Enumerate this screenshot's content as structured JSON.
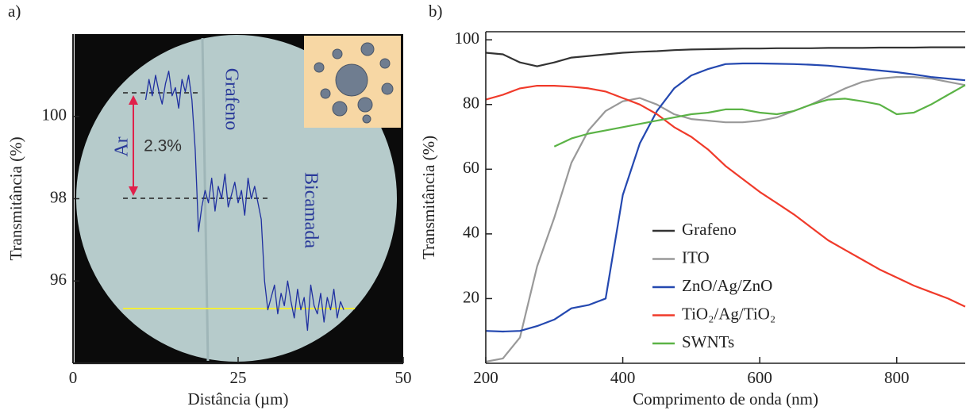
{
  "chart_data": [
    {
      "type": "line",
      "label": "a)",
      "xlabel": "Distância (µm)",
      "ylabel": "Transmitância (%)",
      "xlim": [
        0,
        50
      ],
      "xticks": [
        0,
        25,
        50
      ],
      "ylim": [
        94,
        102
      ],
      "yticks": [
        96,
        98,
        100
      ],
      "annotations": [
        "Ar",
        "2.3%",
        "Grafeno",
        "Bicamada"
      ],
      "x": [
        11,
        11.5,
        12,
        12.5,
        13,
        13.5,
        14,
        14.5,
        15,
        15.5,
        16,
        16.5,
        17,
        17.5,
        18,
        18.5,
        19,
        19.5,
        20,
        20.5,
        21,
        21.5,
        22,
        22.5,
        23,
        23.5,
        24,
        24.5,
        25,
        25.5,
        26,
        26.5,
        27,
        27.5,
        28,
        28.5,
        29,
        29.5,
        30,
        30.5,
        31,
        31.5,
        32,
        32.5,
        33,
        33.5,
        34,
        34.5,
        35,
        35.5,
        36,
        36.5,
        37,
        37.5,
        38,
        38.5,
        39,
        39.5,
        40,
        40.5,
        41
      ],
      "series": [
        {
          "color": "#1f2fa0",
          "values": [
            100.4,
            100.9,
            100.5,
            101.0,
            100.6,
            100.3,
            100.8,
            101.1,
            100.5,
            100.7,
            100.2,
            100.9,
            100.6,
            101.0,
            100.4,
            99.2,
            97.2,
            97.8,
            98.2,
            97.9,
            98.5,
            97.7,
            98.3,
            98.0,
            98.6,
            97.8,
            98.1,
            98.4,
            97.9,
            98.2,
            97.6,
            98.5,
            98.0,
            98.3,
            97.9,
            97.5,
            96.0,
            95.3,
            95.6,
            95.9,
            95.2,
            95.7,
            95.4,
            96.0,
            95.5,
            95.1,
            95.8,
            95.3,
            95.6,
            94.8,
            95.9,
            95.4,
            95.2,
            95.7,
            95.0,
            95.6,
            95.3,
            95.8,
            95.1,
            95.5,
            95.3
          ]
        }
      ]
    },
    {
      "type": "line",
      "label": "b)",
      "xlabel": "Comprimento de onda (nm)",
      "ylabel": "Transmitância (%)",
      "xlim": [
        200,
        900
      ],
      "xticks": [
        200,
        400,
        600,
        800
      ],
      "ylim": [
        0,
        102.5
      ],
      "yticks": [
        20,
        40,
        60,
        80,
        100
      ],
      "legend": "center",
      "x": [
        200,
        225,
        250,
        275,
        300,
        325,
        350,
        375,
        400,
        425,
        450,
        475,
        500,
        525,
        550,
        575,
        600,
        625,
        650,
        675,
        700,
        725,
        750,
        775,
        800,
        825,
        850,
        875,
        900
      ],
      "series": [
        {
          "name": "Grafeno",
          "color": "#333333",
          "values": [
            96,
            95.5,
            93,
            91.8,
            93,
            94.5,
            95,
            95.5,
            96,
            96.3,
            96.5,
            96.8,
            97,
            97.1,
            97.2,
            97.3,
            97.3,
            97.4,
            97.4,
            97.4,
            97.5,
            97.5,
            97.5,
            97.6,
            97.6,
            97.6,
            97.7,
            97.7,
            97.7
          ]
        },
        {
          "name": "ITO",
          "color": "#999999",
          "values": [
            0.5,
            1.5,
            8,
            30,
            45,
            62,
            72,
            78,
            81,
            82,
            80,
            77,
            75.5,
            75,
            74.5,
            74.5,
            75,
            76,
            78,
            80,
            82.5,
            85,
            87,
            88,
            88.5,
            88.5,
            88,
            87,
            86
          ]
        },
        {
          "name": "ZnO/Ag/ZnO",
          "color": "#2448b0",
          "values": [
            10,
            9.8,
            10,
            11.5,
            13.5,
            17,
            18,
            20,
            52,
            68,
            78,
            85,
            89,
            91,
            92.5,
            92.7,
            92.7,
            92.6,
            92.5,
            92.3,
            92,
            91.5,
            91,
            90.5,
            90,
            89.3,
            88.5,
            88,
            87.5
          ]
        },
        {
          "name": "TiO₂/Ag/TiO₂",
          "color": "#f03a2a",
          "values": [
            81.5,
            83,
            85,
            85.8,
            85.8,
            85.5,
            85,
            84,
            82,
            80,
            77,
            73,
            70,
            66,
            61,
            57,
            53,
            49.5,
            46,
            42,
            38,
            35,
            32,
            29,
            26.5,
            24,
            22,
            20,
            17.5
          ]
        },
        {
          "name": "SWNTs",
          "color": "#5bb346",
          "values": [
            null,
            null,
            null,
            null,
            67,
            69.5,
            71,
            72,
            73,
            74,
            75,
            76,
            77,
            77.5,
            78.5,
            78.5,
            77.5,
            77,
            78,
            80,
            81.5,
            81.8,
            81,
            80,
            77,
            77.5,
            80,
            83,
            86
          ]
        }
      ]
    }
  ]
}
